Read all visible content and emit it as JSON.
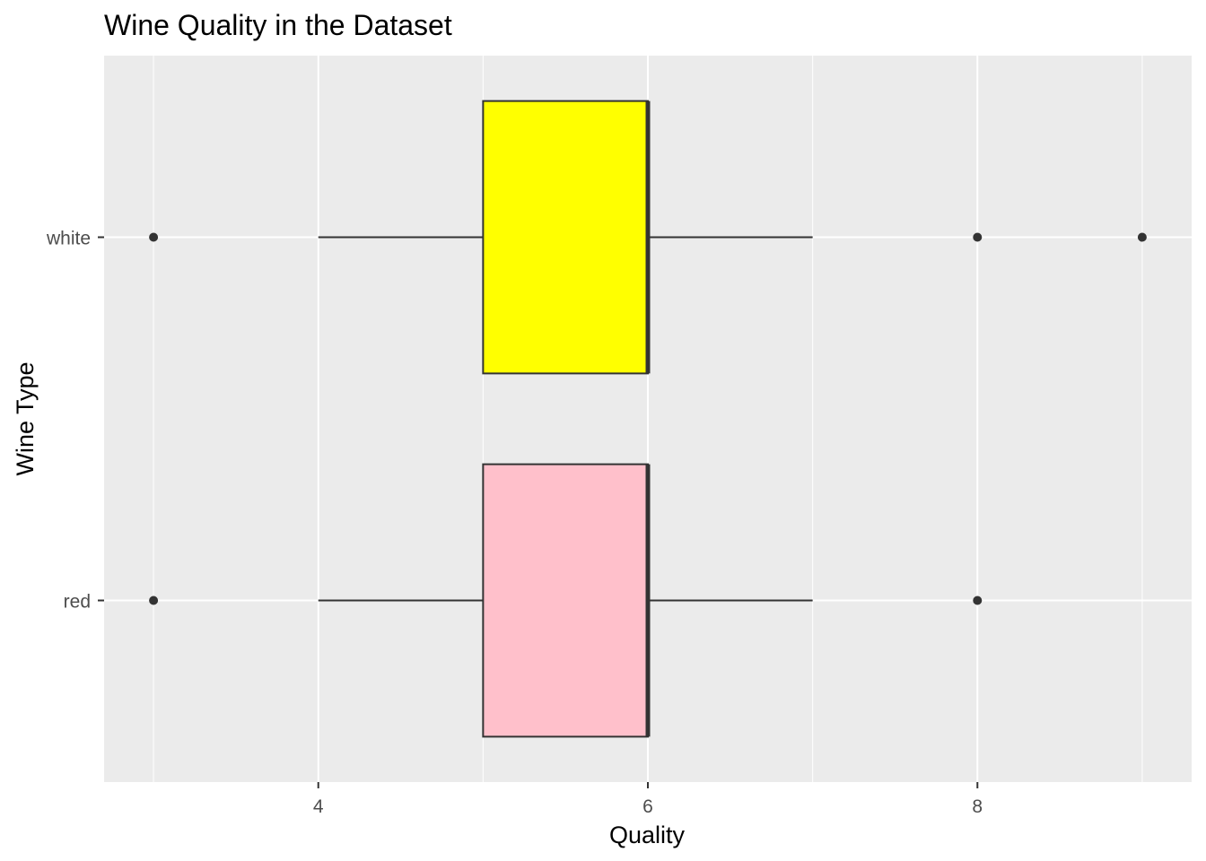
{
  "chart_data": {
    "type": "boxplot",
    "orientation": "horizontal",
    "title": "Wine Quality in the Dataset",
    "xlabel": "Quality",
    "ylabel": "Wine Type",
    "xlim": [
      2.7,
      9.3
    ],
    "x_ticks": [
      4,
      6,
      8
    ],
    "grid": true,
    "categories": [
      "red",
      "white"
    ],
    "boxes": [
      {
        "category": "red",
        "min": 4,
        "q1": 5,
        "median": 6,
        "q3": 6,
        "max": 7,
        "outliers": [
          3,
          8
        ],
        "fill": "#FFC0CB"
      },
      {
        "category": "white",
        "min": 4,
        "q1": 5,
        "median": 6,
        "q3": 6,
        "max": 7,
        "outliers": [
          3,
          8,
          9
        ],
        "fill": "#FFFF00"
      }
    ],
    "colors": {
      "panel": "#EBEBEB",
      "grid": "#FFFFFF",
      "box_line": "#333333",
      "axis_text": "#4D4D4D"
    }
  }
}
